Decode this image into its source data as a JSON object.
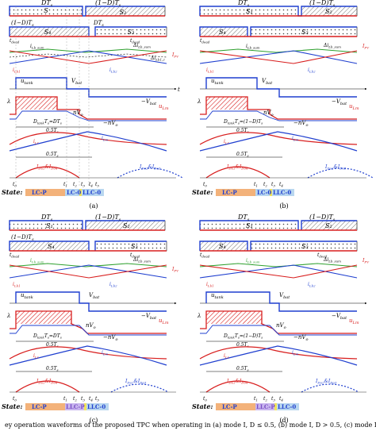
{
  "colors": {
    "blue": "#1f3fcf",
    "red": "#d81e1e",
    "green": "#2fa02f",
    "orange": "#f3b27a",
    "purple": "#7a4fc4",
    "lightblue": "#b9d7ef",
    "yellow": "#f2e35a"
  },
  "panels": [
    {
      "id": "a",
      "caption": "(a)",
      "labels": {
        "dt": "DT",
        "dt_sub": "s",
        "one_minus_d": "(1−D)T",
        "one_minus_d_sub": "s",
        "s1": "S₁",
        "s2": "S₂",
        "s3": "S₃",
        "s4": "S₄",
        "tdead": "t",
        "tdead_sub": "dead",
        "ilb_sum": "i",
        "ilb_sum_sub": "Lb_sum",
        "delta": "Δi",
        "delta_sub": "Lb_sum",
        "delta2": "Δi",
        "delta2_sub": "Lb1,2",
        "ipv": "I",
        "ipv_sub": "PV",
        "ilb1": "i",
        "ilb1_sub": "Lb1",
        "ilb2": "i",
        "ilb2_sub": "Lb2",
        "utank": "u",
        "utank_sub": "tank",
        "vbat": "V",
        "vbat_sub": "bat",
        "nvbat": "−V",
        "nvbat_sub": "bat",
        "ulm": "u",
        "ulm_sub": "Lm",
        "nvo": "nV",
        "nvo_sub": "o",
        "nnvo": "−nV",
        "nnvo_sub": "o",
        "lambda": "λ",
        "dtank": "D",
        "dtank_sub": "tank",
        "dtank_eq": "T",
        "dtank_eq2": "=DT",
        "dtank_eq3": "s",
        "half_ts1": "0.5T",
        "half_ts1_sub": "s",
        "il": "i",
        "il_sub": "Lr",
        "ilm": "i",
        "ilm_sub": "Lm",
        "half_ts2": "0.5T",
        "half_ts2_sub": "s",
        "ido1": "I",
        "ido1_sub": "Do1",
        "ido1_amp": "&I",
        "ido4_sub": "Do4",
        "ido2": "I",
        "ido2_sub": "Do2",
        "ido2_amp": "&I",
        "ido3_sub": "Do3",
        "t": "t"
      },
      "ticks": [
        "t0",
        "t1",
        "t2",
        "t3",
        "t4",
        "t5"
      ],
      "state": {
        "label": "State:",
        "segments": [
          "LC-P",
          "LC-0",
          "LLC-0"
        ]
      }
    },
    {
      "id": "b",
      "caption": "(b)",
      "ticks": [
        "t0",
        "t1",
        "t2",
        "t3",
        "t4"
      ],
      "state": {
        "label": "State:",
        "segments": [
          "LC-P",
          "LC-0",
          "LLC-0"
        ]
      }
    },
    {
      "id": "c",
      "caption": "(c)",
      "ticks": [
        "t0",
        "t1",
        "t2",
        "t3",
        "t4",
        "t5"
      ],
      "state": {
        "label": "State:",
        "segments": [
          "LC-P",
          "LLC-P",
          "LLC-0"
        ]
      }
    },
    {
      "id": "d",
      "caption": "(d)",
      "ticks": [
        "t0",
        "t1",
        "t2",
        "t3",
        "t4"
      ],
      "state": {
        "label": "State:",
        "segments": [
          "LC-P",
          "LLC-P",
          "LLC-0"
        ]
      }
    }
  ],
  "caption_line": "ey operation waveforms of the proposed TPC when operating in (a) mode I, D ≤ 0.5, (b) mode I, D > 0.5, (c) mode II, D"
}
